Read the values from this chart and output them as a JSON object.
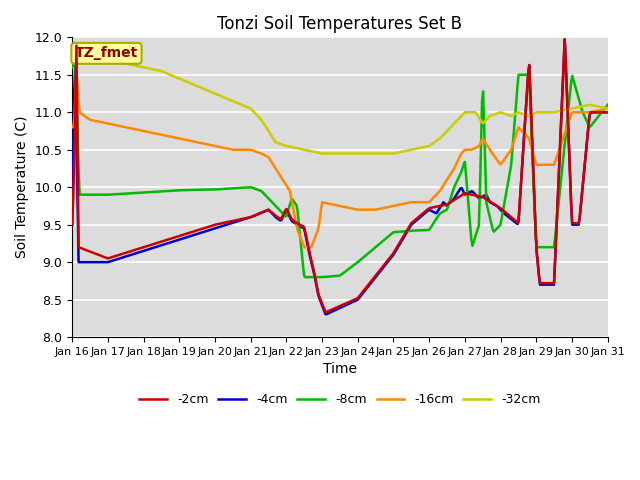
{
  "title": "Tonzi Soil Temperatures Set B",
  "xlabel": "Time",
  "ylabel": "Soil Temperature (C)",
  "ylim": [
    8.0,
    12.0
  ],
  "yticks": [
    8.0,
    8.5,
    9.0,
    9.5,
    10.0,
    10.5,
    11.0,
    11.5,
    12.0
  ],
  "xtick_labels": [
    "Jan 16",
    "Jan 17",
    "Jan 18",
    "Jan 19",
    "Jan 20",
    "Jan 21",
    "Jan 22",
    "Jan 23",
    "Jan 24",
    "Jan 25",
    "Jan 26",
    "Jan 27",
    "Jan 28",
    "Jan 29",
    "Jan 30",
    "Jan 31"
  ],
  "background_color": "#dcdcdc",
  "grid_color": "#ffffff",
  "annotation_text": "TZ_fmet",
  "annotation_color": "#8b0000",
  "annotation_bg": "#ffff99",
  "annotation_border": "#aaaa00",
  "series": {
    "neg2cm": {
      "label": "-2cm",
      "color": "#cc0000",
      "linewidth": 1.8
    },
    "neg4cm": {
      "label": "-4cm",
      "color": "#0000cc",
      "linewidth": 1.8
    },
    "neg8cm": {
      "label": "-8cm",
      "color": "#00bb00",
      "linewidth": 1.8
    },
    "neg16cm": {
      "label": "-16cm",
      "color": "#ff8800",
      "linewidth": 1.8
    },
    "neg32cm": {
      "label": "-32cm",
      "color": "#cccc00",
      "linewidth": 1.8
    }
  }
}
